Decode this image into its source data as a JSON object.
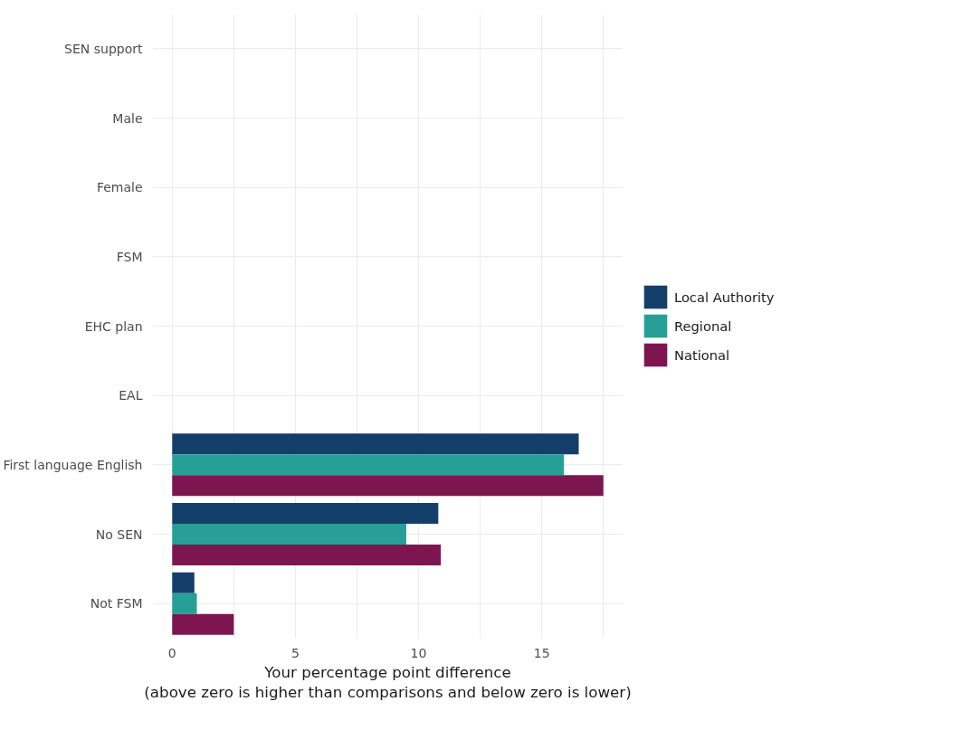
{
  "chart_data": {
    "type": "bar",
    "orientation": "horizontal",
    "xlabel": "Your percentage point difference\n(above zero is higher than comparisons and below zero is lower)",
    "categories": [
      "SEN support",
      "Male",
      "Female",
      "FSM",
      "EHC plan",
      "EAL",
      "First language English",
      "No SEN",
      "Not FSM"
    ],
    "series": [
      {
        "name": "Local Authority",
        "color": "#143f6b",
        "values": [
          null,
          null,
          null,
          null,
          null,
          null,
          16.5,
          10.8,
          0.9
        ]
      },
      {
        "name": "Regional",
        "color": "#26a096",
        "values": [
          null,
          null,
          null,
          null,
          null,
          null,
          15.9,
          9.5,
          1.0
        ]
      },
      {
        "name": "National",
        "color": "#7d1650",
        "values": [
          null,
          null,
          null,
          null,
          null,
          null,
          17.5,
          10.9,
          2.5
        ]
      }
    ],
    "xlim": [
      -0.8,
      18.3
    ],
    "xticks": [
      0,
      5,
      10,
      15
    ],
    "grid": true,
    "legend": "right"
  }
}
